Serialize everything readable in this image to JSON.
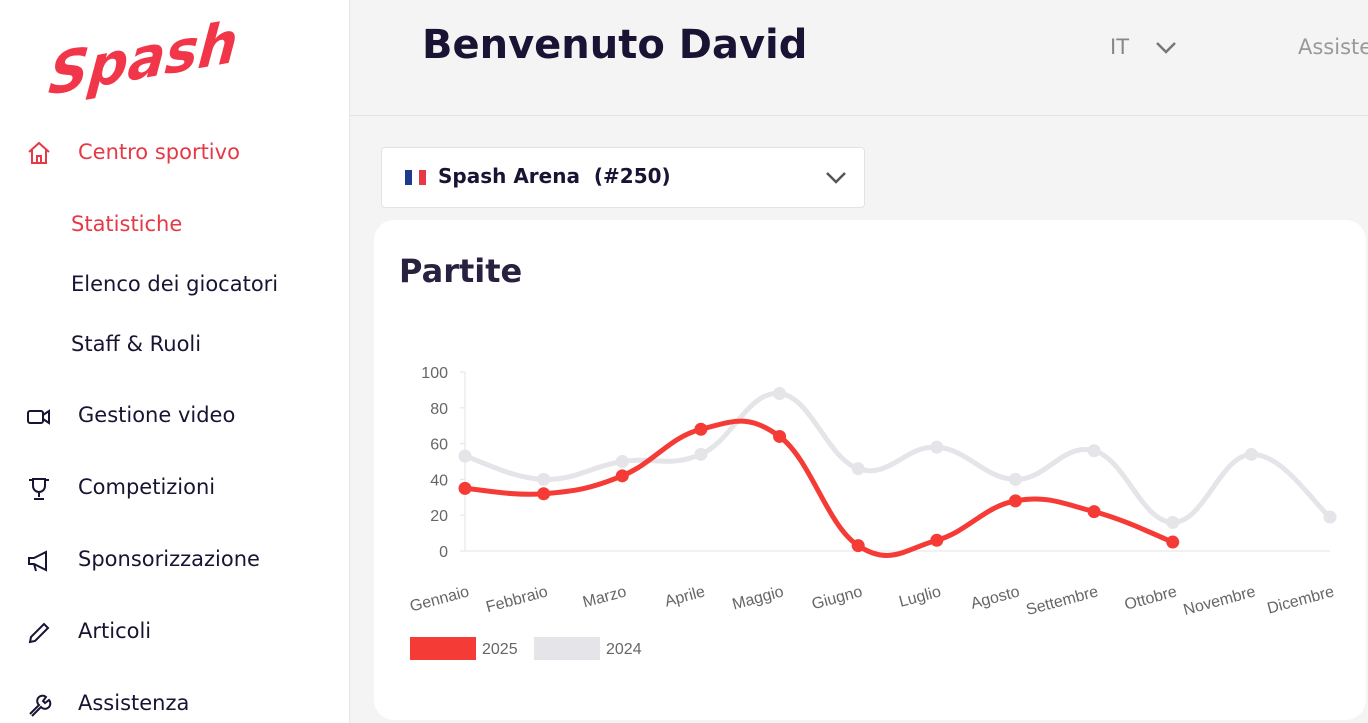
{
  "sidebar": {
    "logo": "Spash",
    "menu": [
      {
        "label": "Centro sportivo",
        "children": [
          "Statistiche",
          "Elenco dei giocatori",
          "Staff & Ruoli"
        ]
      },
      {
        "label": "Gestione video"
      },
      {
        "label": "Competizioni"
      },
      {
        "label": "Sponsorizzazione"
      },
      {
        "label": "Articoli"
      },
      {
        "label": "Assistenza"
      }
    ]
  },
  "header": {
    "title": "Benvenuto David",
    "language": "IT",
    "help": "Assistenza"
  },
  "selector": {
    "label": "Spash Arena  (#250)"
  },
  "chart_data": {
    "type": "line",
    "title": "Partite",
    "categories": [
      "Gennaio",
      "Febbraio",
      "Marzo",
      "Aprile",
      "Maggio",
      "Giugno",
      "Luglio",
      "Agosto",
      "Settembre",
      "Ottobre",
      "Novembre",
      "Dicembre"
    ],
    "series": [
      {
        "name": "2025",
        "color": "#f53b36",
        "values": [
          35,
          32,
          42,
          68,
          64,
          3,
          6,
          28,
          22,
          5,
          null,
          null
        ]
      },
      {
        "name": "2024",
        "color": "#e4e4e9",
        "values": [
          53,
          40,
          50,
          54,
          88,
          46,
          58,
          40,
          56,
          16,
          54,
          19
        ]
      }
    ],
    "ylim": [
      0,
      100
    ],
    "yticks": [
      0,
      20,
      40,
      60,
      80,
      100
    ],
    "grid": false
  }
}
